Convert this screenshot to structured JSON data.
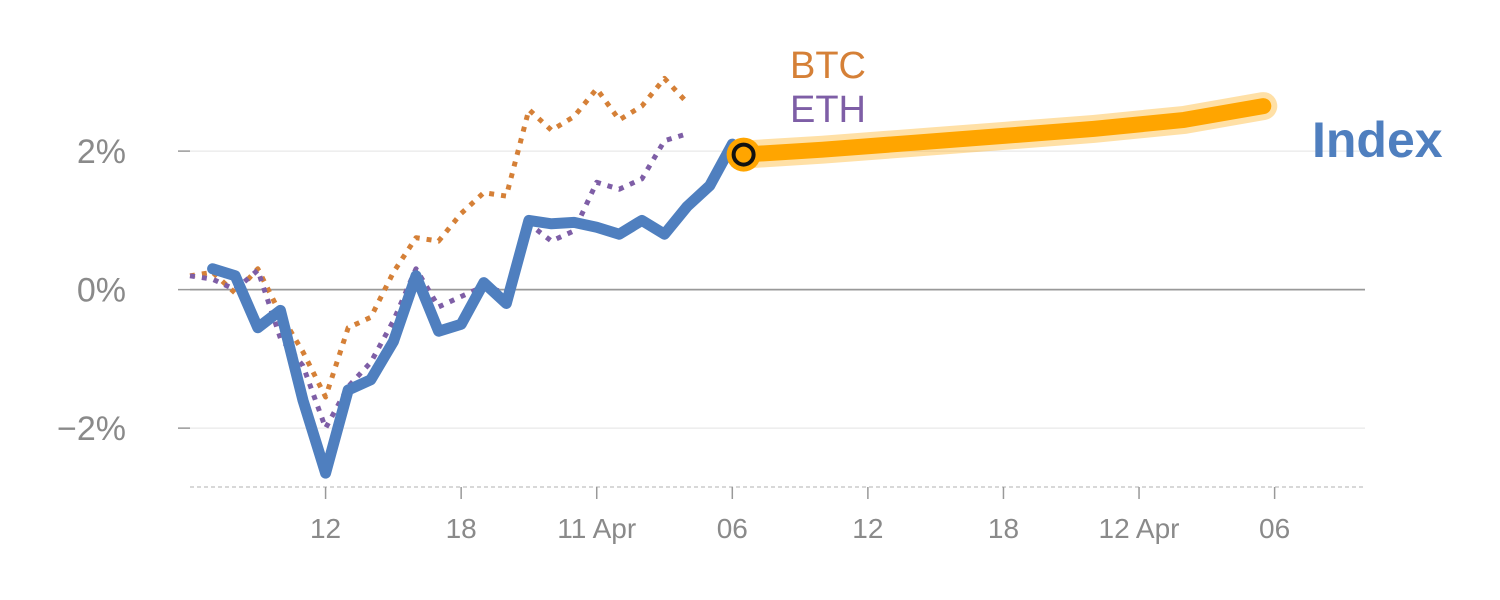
{
  "chart_data": {
    "type": "line",
    "xlim": [
      0,
      52
    ],
    "ylim": [
      -2.85,
      3.2
    ],
    "y_ticks": [
      {
        "value": 2,
        "label": "2%"
      },
      {
        "value": 0,
        "label": "0%"
      },
      {
        "value": -2,
        "label": "−2%"
      }
    ],
    "x_ticks": [
      {
        "value": 6,
        "label": "12"
      },
      {
        "value": 12,
        "label": "18"
      },
      {
        "value": 18,
        "label": "11 Apr"
      },
      {
        "value": 24,
        "label": "06"
      },
      {
        "value": 30,
        "label": "12"
      },
      {
        "value": 36,
        "label": "18"
      },
      {
        "value": 42,
        "label": "12 Apr"
      },
      {
        "value": 48,
        "label": "06"
      }
    ],
    "grid": true,
    "colors": {
      "index": "#4f7fbf",
      "btc": "#d58037",
      "eth": "#7e5ea6",
      "projection": "#ffa500",
      "grid": "#e8e8e8",
      "zero_line": "#999999",
      "tick_text": "#8a8a8a"
    },
    "series": [
      {
        "name": "BTC",
        "style": "dotted",
        "x": [
          0,
          1,
          2,
          3,
          4,
          5,
          6,
          7,
          8,
          9,
          10,
          11,
          12,
          13,
          14,
          15,
          16,
          17,
          18,
          19,
          20,
          21,
          22,
          23,
          24,
          25
        ],
        "y": [
          0.2,
          0.25,
          -0.05,
          0.3,
          -0.35,
          -0.9,
          -1.55,
          -0.55,
          -0.4,
          0.25,
          0.75,
          0.7,
          1.1,
          1.4,
          1.35,
          2.6,
          2.3,
          2.5,
          2.9,
          2.45,
          2.65,
          3.05,
          2.7,
          null,
          null,
          null
        ]
      },
      {
        "name": "ETH",
        "style": "dotted",
        "x": [
          0,
          1,
          2,
          3,
          4,
          5,
          6,
          7,
          8,
          9,
          10,
          11,
          12,
          13,
          14,
          15,
          16,
          17,
          18,
          19,
          20,
          21,
          22,
          23,
          24,
          25
        ],
        "y": [
          0.2,
          0.15,
          0.0,
          0.28,
          -0.7,
          -1.1,
          -2.0,
          -1.4,
          -1.05,
          -0.45,
          0.3,
          -0.25,
          -0.1,
          0.05,
          -0.05,
          0.95,
          0.7,
          0.85,
          1.55,
          1.45,
          1.6,
          2.15,
          2.25,
          null,
          null,
          null
        ]
      },
      {
        "name": "Index",
        "style": "solid",
        "x": [
          1,
          2,
          3,
          4,
          5,
          6,
          7,
          8,
          9,
          10,
          11,
          12,
          13,
          14,
          15,
          16,
          17,
          18,
          19,
          20,
          21,
          22,
          23,
          24,
          25,
          26,
          27
        ],
        "y": [
          0.3,
          0.2,
          -0.55,
          -0.3,
          -1.6,
          -2.65,
          -1.45,
          -1.3,
          -0.75,
          0.2,
          -0.6,
          -0.5,
          0.1,
          -0.2,
          1.0,
          0.95,
          0.97,
          0.9,
          0.8,
          1.0,
          0.8,
          1.2,
          1.5,
          2.1,
          null,
          null,
          null
        ]
      }
    ],
    "projection": {
      "x": [
        24.5,
        28,
        32,
        36,
        40,
        44,
        47.5
      ],
      "y": [
        1.95,
        2.02,
        2.12,
        2.22,
        2.32,
        2.45,
        2.65
      ]
    },
    "current_point": {
      "x": 24.5,
      "y": 1.95
    },
    "labels": {
      "btc": "BTC",
      "eth": "ETH",
      "index": "Index"
    }
  }
}
